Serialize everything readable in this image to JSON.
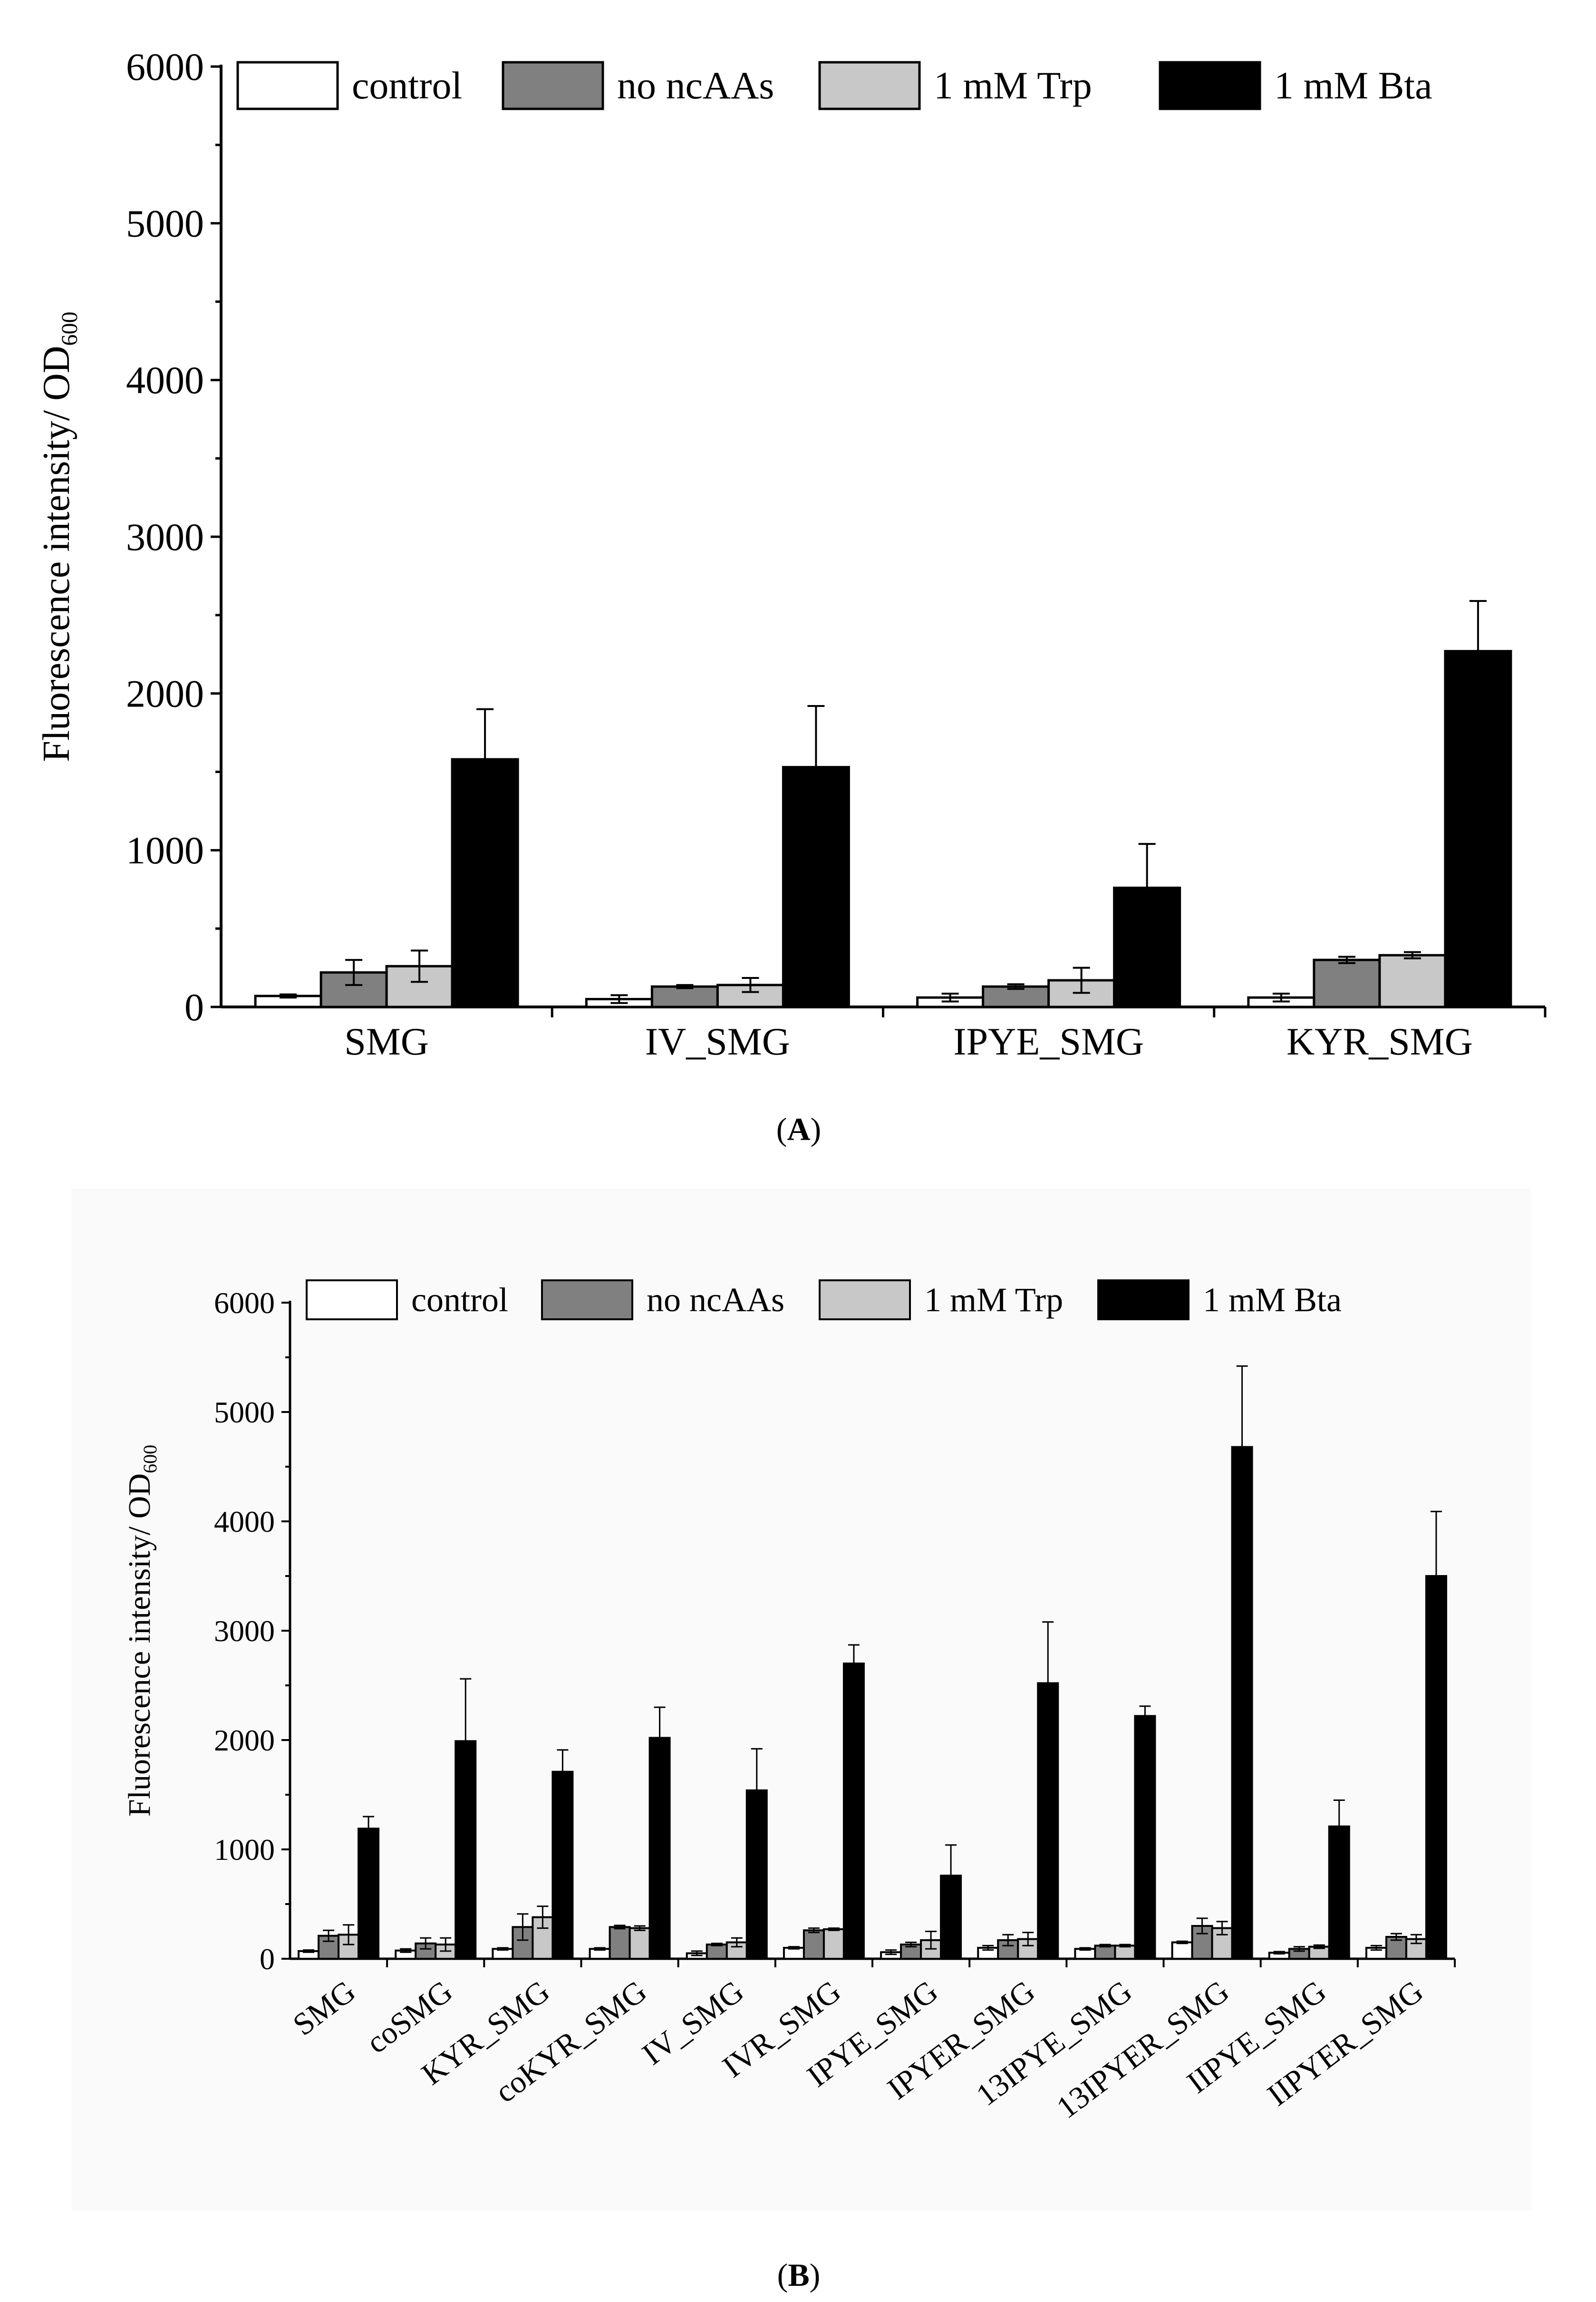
{
  "colors": {
    "control": "#ffffff",
    "no_ncAAs": "#808080",
    "trp": "#c8c8c8",
    "bta": "#000000"
  },
  "chart_data": [
    {
      "type": "bar",
      "panel_label": "A",
      "ylabel": "Fluorescence intensity/ OD",
      "ylabel_sub": "600",
      "ylim": [
        0,
        6000
      ],
      "yticks": [
        "0",
        "1000",
        "2000",
        "3000",
        "4000",
        "5000",
        "6000"
      ],
      "legend_position": "top",
      "categories": [
        "SMG",
        "IV_SMG",
        "IPYE_SMG",
        "KYR_SMG"
      ],
      "series": [
        {
          "name": "control",
          "values": [
            70,
            50,
            60,
            60
          ],
          "errors": [
            10,
            25,
            25,
            25
          ]
        },
        {
          "name": "no ncAAs",
          "values": [
            220,
            130,
            130,
            300
          ],
          "errors": [
            80,
            10,
            15,
            20
          ]
        },
        {
          "name": "1 mM Trp",
          "values": [
            260,
            140,
            170,
            330
          ],
          "errors": [
            100,
            45,
            80,
            20
          ]
        },
        {
          "name": "1 mM Bta",
          "values": [
            1580,
            1530,
            760,
            2270
          ],
          "errors": [
            320,
            390,
            280,
            320
          ]
        }
      ]
    },
    {
      "type": "bar",
      "panel_label": "B",
      "ylabel": "Fluorescence intensity/ OD",
      "ylabel_sub": "600",
      "ylim": [
        0,
        6000
      ],
      "yticks": [
        "0",
        "1000",
        "2000",
        "3000",
        "4000",
        "5000",
        "6000"
      ],
      "legend_position": "top",
      "categories": [
        "SMG",
        "coSMG",
        "KYR_SMG",
        "coKYR_SMG",
        "IV_SMG",
        "IVR_SMG",
        "IPYE_SMG",
        "IPYER_SMG",
        "13IPYE_SMG",
        "13IPYER_SMG",
        "IIPYE_SMG",
        "IIPYER_SMG"
      ],
      "series": [
        {
          "name": "control",
          "values": [
            70,
            75,
            90,
            90,
            50,
            100,
            60,
            100,
            90,
            150,
            55,
            100
          ],
          "errors": [
            10,
            15,
            10,
            10,
            20,
            10,
            20,
            20,
            10,
            10,
            10,
            20
          ]
        },
        {
          "name": "no ncAAs",
          "values": [
            210,
            140,
            290,
            290,
            130,
            260,
            130,
            170,
            120,
            300,
            90,
            200
          ],
          "errors": [
            50,
            50,
            120,
            15,
            10,
            20,
            20,
            50,
            10,
            70,
            20,
            30
          ]
        },
        {
          "name": "1 mM Trp",
          "values": [
            220,
            130,
            380,
            280,
            150,
            270,
            170,
            180,
            120,
            280,
            110,
            180
          ],
          "errors": [
            90,
            60,
            100,
            20,
            40,
            10,
            80,
            60,
            10,
            60,
            15,
            40
          ]
        },
        {
          "name": "1 mM Bta",
          "values": [
            1190,
            1990,
            1710,
            2020,
            1540,
            2700,
            760,
            2520,
            2220,
            4680,
            1210,
            3500
          ],
          "errors": [
            110,
            570,
            200,
            280,
            380,
            170,
            280,
            560,
            90,
            740,
            240,
            590
          ]
        }
      ]
    }
  ]
}
